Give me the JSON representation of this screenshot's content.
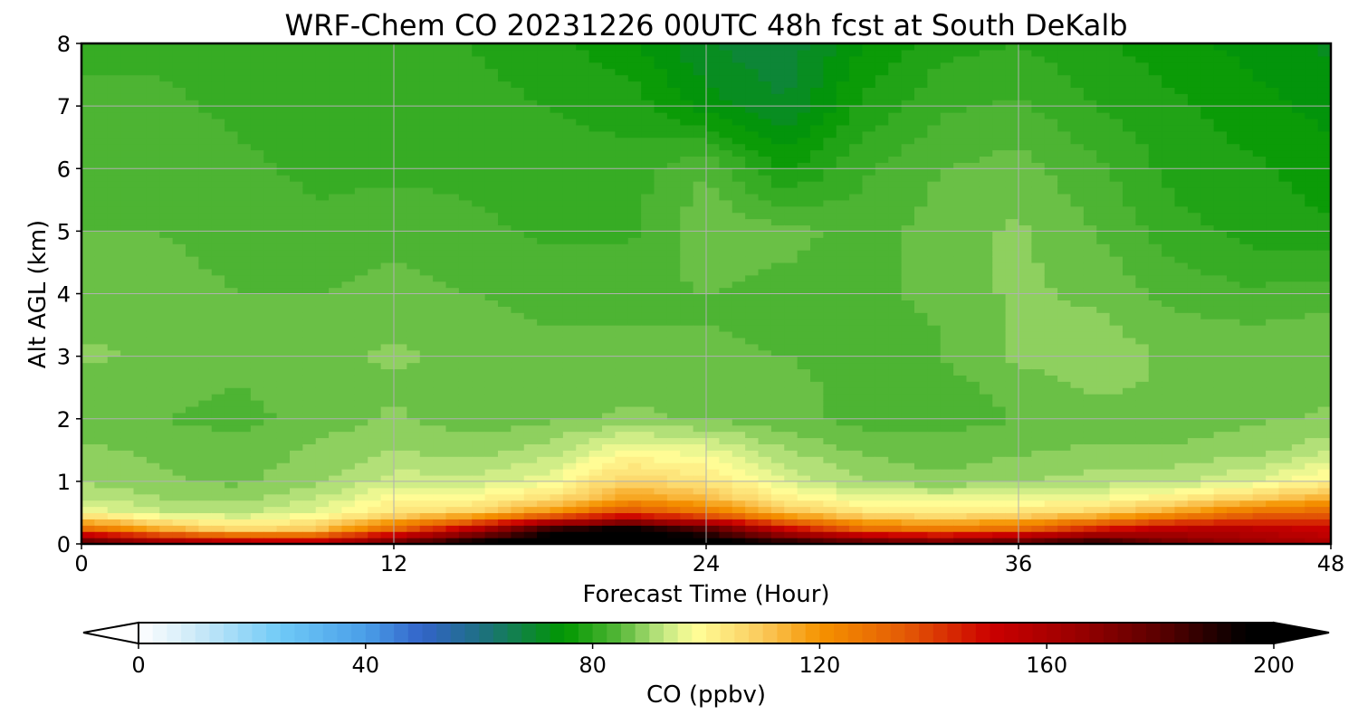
{
  "chart_data": {
    "type": "heatmap",
    "title": "WRF-Chem CO  20231226 00UTC 48h fcst at South DeKalb",
    "xlabel": "Forecast Time (Hour)",
    "ylabel": "Alt AGL (km)",
    "xlim": [
      0,
      48
    ],
    "ylim": [
      0,
      8
    ],
    "xticks": [
      0,
      12,
      24,
      36,
      48
    ],
    "yticks": [
      0,
      1,
      2,
      3,
      4,
      5,
      6,
      7,
      8
    ],
    "grid": true,
    "x": [
      0,
      3,
      6,
      9,
      12,
      15,
      18,
      21,
      24,
      27,
      30,
      33,
      36,
      39,
      42,
      45,
      48
    ],
    "y": [
      0,
      0.25,
      0.5,
      0.75,
      1,
      1.5,
      2,
      2.5,
      3,
      3.5,
      4,
      5,
      6,
      7,
      8
    ],
    "z": [
      [
        185,
        170,
        165,
        160,
        180,
        200,
        210,
        210,
        205,
        195,
        185,
        180,
        185,
        195,
        175,
        165,
        160
      ],
      [
        130,
        115,
        105,
        110,
        130,
        155,
        185,
        195,
        180,
        150,
        130,
        125,
        130,
        145,
        155,
        155,
        150
      ],
      [
        98,
        93,
        92,
        96,
        104,
        108,
        122,
        138,
        128,
        112,
        104,
        102,
        104,
        108,
        118,
        130,
        132
      ],
      [
        92,
        90,
        89,
        92,
        99,
        99,
        104,
        118,
        112,
        101,
        96,
        95,
        96,
        97,
        101,
        108,
        114
      ],
      [
        90,
        88,
        87,
        89,
        94,
        93,
        97,
        108,
        104,
        95,
        90,
        88,
        90,
        91,
        92,
        95,
        101
      ],
      [
        88,
        87,
        86,
        88,
        90,
        89,
        91,
        98,
        96,
        90,
        87,
        86,
        87,
        88,
        88,
        89,
        92
      ],
      [
        86,
        85,
        84,
        86,
        88,
        86,
        87,
        88,
        87,
        86,
        84,
        84,
        85,
        86,
        86,
        87,
        88
      ],
      [
        86,
        86,
        85,
        86,
        87,
        86,
        86,
        87,
        87,
        86,
        84,
        84,
        86,
        88,
        87,
        86,
        87
      ],
      [
        88,
        87,
        86,
        87,
        88,
        87,
        86,
        86,
        86,
        85,
        84,
        85,
        88,
        89,
        87,
        86,
        87
      ],
      [
        87,
        87,
        86,
        86,
        87,
        86,
        85,
        85,
        85,
        84,
        84,
        85,
        88,
        88,
        86,
        85,
        86
      ],
      [
        86,
        86,
        85,
        85,
        86,
        85,
        84,
        84,
        85,
        84,
        84,
        86,
        88,
        87,
        84,
        83,
        84
      ],
      [
        85,
        85,
        84,
        83,
        84,
        83,
        82,
        82,
        87,
        86,
        84,
        86,
        88,
        85,
        81,
        79,
        78
      ],
      [
        84,
        84,
        83,
        82,
        82,
        82,
        81,
        81,
        85,
        77,
        82,
        85,
        86,
        83,
        79,
        78,
        76
      ],
      [
        83,
        83,
        82,
        81,
        81,
        81,
        80,
        79,
        74,
        70,
        78,
        82,
        83,
        80,
        78,
        76,
        74
      ],
      [
        82,
        82,
        81,
        80,
        80,
        80,
        78,
        76,
        70,
        68,
        75,
        79,
        80,
        78,
        76,
        74,
        72
      ]
    ],
    "colorbar": {
      "label": "CO  (ppbv)",
      "min": 0,
      "max": 200,
      "ticks": [
        0,
        40,
        80,
        120,
        160,
        200
      ],
      "extend": "both",
      "stops": [
        {
          "v": 0,
          "c": "#ffffff"
        },
        {
          "v": 10,
          "c": "#cdeaf8"
        },
        {
          "v": 25,
          "c": "#6fcaf7"
        },
        {
          "v": 40,
          "c": "#4a9ee8"
        },
        {
          "v": 50,
          "c": "#3263c8"
        },
        {
          "v": 60,
          "c": "#1f6f85"
        },
        {
          "v": 75,
          "c": "#009700"
        },
        {
          "v": 85,
          "c": "#58b83a"
        },
        {
          "v": 92,
          "c": "#bde57f"
        },
        {
          "v": 98,
          "c": "#ffff99"
        },
        {
          "v": 110,
          "c": "#fbc95a"
        },
        {
          "v": 120,
          "c": "#f59300"
        },
        {
          "v": 135,
          "c": "#e45a05"
        },
        {
          "v": 150,
          "c": "#cc0000"
        },
        {
          "v": 165,
          "c": "#9b0000"
        },
        {
          "v": 180,
          "c": "#5a0000"
        },
        {
          "v": 195,
          "c": "#000000"
        },
        {
          "v": 200,
          "c": "#000000"
        }
      ]
    }
  }
}
